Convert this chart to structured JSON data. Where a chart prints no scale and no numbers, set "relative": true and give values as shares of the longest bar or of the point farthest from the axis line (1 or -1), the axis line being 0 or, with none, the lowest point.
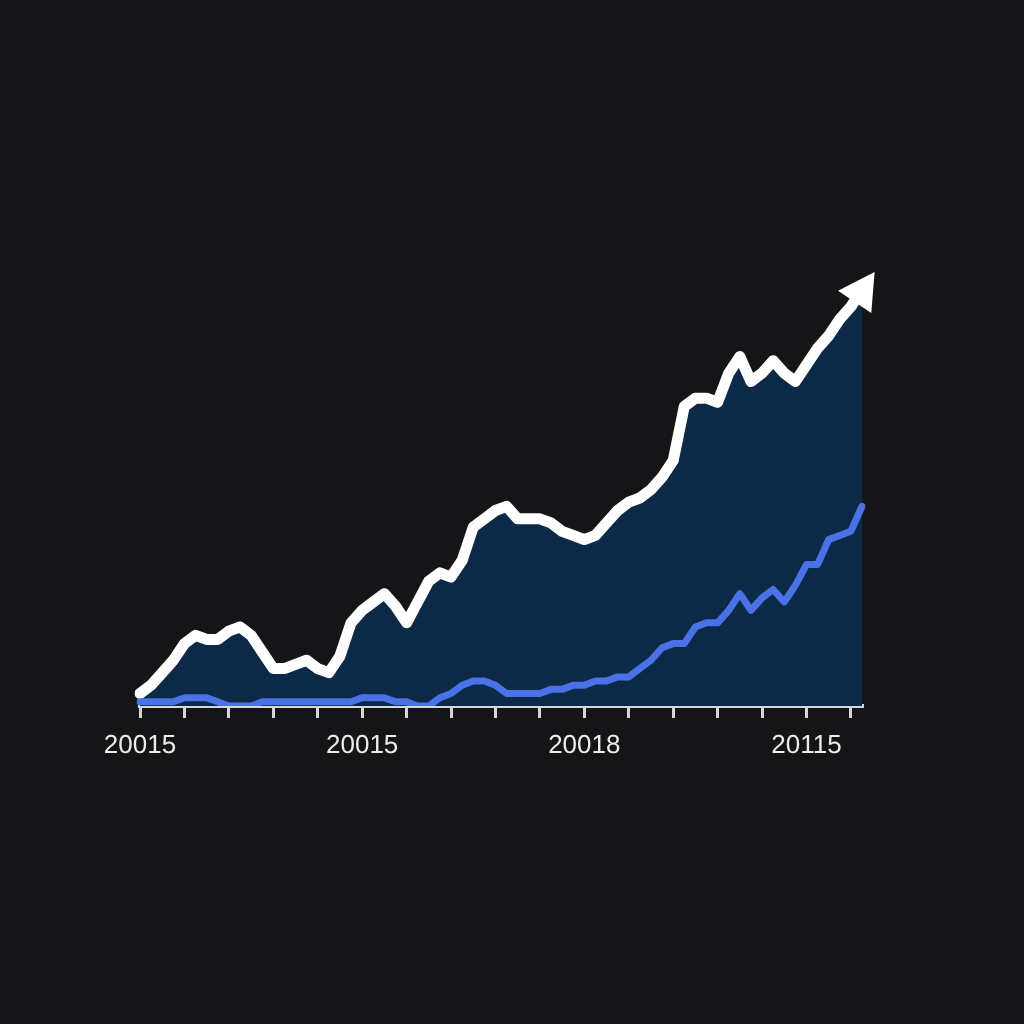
{
  "chart_data": {
    "type": "line",
    "relative": true,
    "marker": "none",
    "line_style": "solid",
    "categories": [
      "20015",
      null,
      null,
      null,
      null,
      null,
      null,
      null,
      null,
      null,
      null,
      null,
      null,
      null,
      null,
      null,
      null,
      null,
      null,
      null,
      "20015",
      null,
      null,
      null,
      null,
      null,
      null,
      null,
      null,
      null,
      null,
      null,
      null,
      null,
      null,
      null,
      null,
      null,
      null,
      null,
      "20018",
      null,
      null,
      null,
      null,
      null,
      null,
      null,
      null,
      null,
      null,
      null,
      null,
      null,
      null,
      null,
      null,
      null,
      null,
      null,
      "20115",
      null,
      null,
      null,
      null,
      null
    ],
    "series": [
      {
        "type": "area",
        "color": "#0c2a47",
        "values": [
          0.03,
          0.05,
          0.08,
          0.11,
          0.15,
          0.17,
          0.16,
          0.16,
          0.18,
          0.19,
          0.17,
          0.13,
          0.09,
          0.09,
          0.1,
          0.11,
          0.09,
          0.08,
          0.12,
          0.2,
          0.23,
          0.25,
          0.27,
          0.24,
          0.2,
          0.25,
          0.3,
          0.32,
          0.31,
          0.35,
          0.43,
          0.45,
          0.47,
          0.48,
          0.45,
          0.45,
          0.45,
          0.44,
          0.42,
          0.41,
          0.4,
          0.41,
          0.44,
          0.47,
          0.49,
          0.5,
          0.52,
          0.55,
          0.59,
          0.72,
          0.74,
          0.74,
          0.73,
          0.8,
          0.84,
          0.78,
          0.8,
          0.83,
          0.8,
          0.78,
          0.82,
          0.86,
          0.89,
          0.93,
          0.96,
          1
        ]
      },
      {
        "type": "line",
        "color": "#4a72e6",
        "values": [
          0.01,
          0.01,
          0.01,
          0.01,
          0.02,
          0.02,
          0.02,
          0.01,
          0.0,
          0.0,
          0.0,
          0.01,
          0.01,
          0.01,
          0.01,
          0.01,
          0.01,
          0.01,
          0.01,
          0.01,
          0.02,
          0.02,
          0.02,
          0.01,
          0.01,
          0.0,
          0.0,
          0.02,
          0.03,
          0.05,
          0.06,
          0.06,
          0.05,
          0.03,
          0.03,
          0.03,
          0.03,
          0.04,
          0.04,
          0.05,
          0.05,
          0.06,
          0.06,
          0.07,
          0.07,
          0.09,
          0.11,
          0.14,
          0.15,
          0.15,
          0.19,
          0.2,
          0.2,
          0.23,
          0.27,
          0.23,
          0.26,
          0.28,
          0.25,
          0.29,
          0.34,
          0.34,
          0.4,
          0.41,
          0.42,
          0.48
        ]
      }
    ]
  }
}
